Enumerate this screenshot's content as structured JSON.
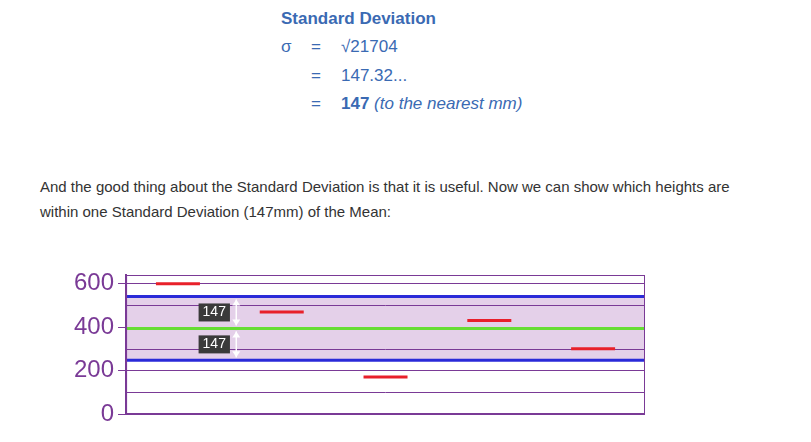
{
  "text": {
    "heading": "Standard Deviation",
    "formula": {
      "symbol": "σ",
      "equals": "=",
      "steps": [
        "√21704",
        "147.32...",
        "147"
      ],
      "note": "(to the nearest mm)"
    },
    "paragraph": "And the good thing about the Standard Deviation is that it is useful. Now we can show which heights are within one Standard Deviation (147mm) of the Mean:"
  },
  "chart_data": {
    "type": "line",
    "categories": [
      null,
      null,
      null,
      null,
      null
    ],
    "values": [
      600,
      470,
      170,
      430,
      300
    ],
    "color": "#e8202a",
    "marker": "line",
    "line_style": "none",
    "ylim": [
      0,
      640
    ],
    "yticks": [
      0,
      200,
      400,
      600
    ],
    "minor_yticks": [
      100,
      300,
      500
    ],
    "grid": true,
    "tick_labels": "y",
    "reference_lines": [
      {
        "value": 541,
        "color": "#2a2ad8"
      },
      {
        "value": 394,
        "color": "#66dd33"
      },
      {
        "value": 247,
        "color": "#2a2ad8"
      }
    ],
    "band": [
      247,
      541
    ],
    "annotations": [
      "147",
      "147"
    ]
  }
}
